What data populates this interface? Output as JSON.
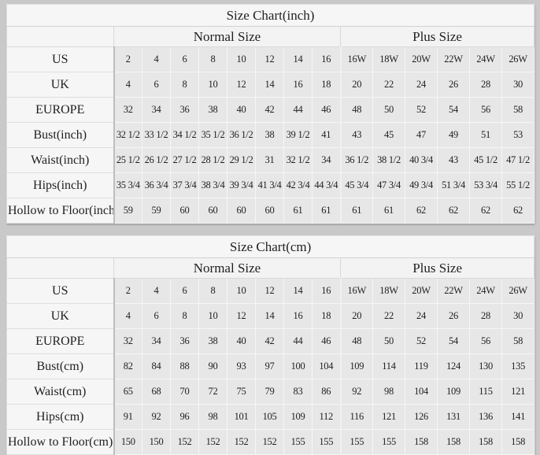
{
  "colors": {
    "page_background": "#c9c9c9",
    "cell_background": "#e7e7e7",
    "label_background": "#f6f6f6",
    "text": "#1f1f1f"
  },
  "tables": [
    {
      "id": "inch",
      "title": "Size Chart(inch)",
      "sections": {
        "normal": "Normal Size",
        "plus": "Plus Size"
      },
      "normal_count": 8,
      "plus_count": 6,
      "rows": [
        {
          "label": "US",
          "values": [
            "2",
            "4",
            "6",
            "8",
            "10",
            "12",
            "14",
            "16",
            "16W",
            "18W",
            "20W",
            "22W",
            "24W",
            "26W"
          ]
        },
        {
          "label": "UK",
          "values": [
            "4",
            "6",
            "8",
            "10",
            "12",
            "14",
            "16",
            "18",
            "20",
            "22",
            "24",
            "26",
            "28",
            "30"
          ]
        },
        {
          "label": "EUROPE",
          "values": [
            "32",
            "34",
            "36",
            "38",
            "40",
            "42",
            "44",
            "46",
            "48",
            "50",
            "52",
            "54",
            "56",
            "58"
          ]
        },
        {
          "label": "Bust(inch)",
          "values": [
            "32 1/2",
            "33 1/2",
            "34 1/2",
            "35 1/2",
            "36 1/2",
            "38",
            "39 1/2",
            "41",
            "43",
            "45",
            "47",
            "49",
            "51",
            "53"
          ]
        },
        {
          "label": "Waist(inch)",
          "values": [
            "25 1/2",
            "26 1/2",
            "27 1/2",
            "28 1/2",
            "29 1/2",
            "31",
            "32 1/2",
            "34",
            "36 1/2",
            "38 1/2",
            "40 3/4",
            "43",
            "45 1/2",
            "47 1/2"
          ]
        },
        {
          "label": "Hips(inch)",
          "values": [
            "35 3/4",
            "36 3/4",
            "37 3/4",
            "38 3/4",
            "39 3/4",
            "41 3/4",
            "42 3/4",
            "44 3/4",
            "45 3/4",
            "47 3/4",
            "49 3/4",
            "51 3/4",
            "53 3/4",
            "55 1/2"
          ]
        },
        {
          "label": "Hollow to Floor(inch)",
          "values": [
            "59",
            "59",
            "60",
            "60",
            "60",
            "60",
            "61",
            "61",
            "61",
            "61",
            "62",
            "62",
            "62",
            "62"
          ]
        }
      ]
    },
    {
      "id": "cm",
      "title": "Size Chart(cm)",
      "sections": {
        "normal": "Normal Size",
        "plus": "Plus Size"
      },
      "normal_count": 8,
      "plus_count": 6,
      "rows": [
        {
          "label": "US",
          "values": [
            "2",
            "4",
            "6",
            "8",
            "10",
            "12",
            "14",
            "16",
            "16W",
            "18W",
            "20W",
            "22W",
            "24W",
            "26W"
          ]
        },
        {
          "label": "UK",
          "values": [
            "4",
            "6",
            "8",
            "10",
            "12",
            "14",
            "16",
            "18",
            "20",
            "22",
            "24",
            "26",
            "28",
            "30"
          ]
        },
        {
          "label": "EUROPE",
          "values": [
            "32",
            "34",
            "36",
            "38",
            "40",
            "42",
            "44",
            "46",
            "48",
            "50",
            "52",
            "54",
            "56",
            "58"
          ]
        },
        {
          "label": "Bust(cm)",
          "values": [
            "82",
            "84",
            "88",
            "90",
            "93",
            "97",
            "100",
            "104",
            "109",
            "114",
            "119",
            "124",
            "130",
            "135"
          ]
        },
        {
          "label": "Waist(cm)",
          "values": [
            "65",
            "68",
            "70",
            "72",
            "75",
            "79",
            "83",
            "86",
            "92",
            "98",
            "104",
            "109",
            "115",
            "121"
          ]
        },
        {
          "label": "Hips(cm)",
          "values": [
            "91",
            "92",
            "96",
            "98",
            "101",
            "105",
            "109",
            "112",
            "116",
            "121",
            "126",
            "131",
            "136",
            "141"
          ]
        },
        {
          "label": "Hollow to Floor(cm)",
          "values": [
            "150",
            "150",
            "152",
            "152",
            "152",
            "152",
            "155",
            "155",
            "155",
            "155",
            "158",
            "158",
            "158",
            "158"
          ]
        }
      ]
    }
  ]
}
